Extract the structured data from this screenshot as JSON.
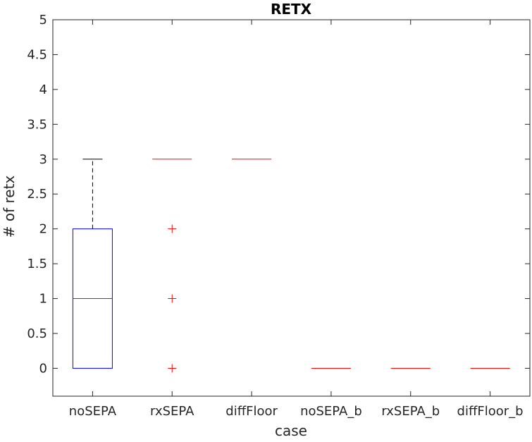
{
  "chart_data": {
    "type": "boxplot",
    "title": "RETX",
    "xlabel": "case",
    "ylabel": "# of retx",
    "ylim": [
      -0.4,
      5
    ],
    "yticks": [
      0,
      0.5,
      1,
      1.5,
      2,
      2.5,
      3,
      3.5,
      4,
      4.5,
      5
    ],
    "ytick_labels": [
      "0",
      "0.5",
      "1",
      "1.5",
      "2",
      "2.5",
      "3",
      "3.5",
      "4",
      "4.5",
      "5"
    ],
    "categories": [
      "noSEPA",
      "rxSEPA",
      "diffFloor",
      "noSEPA_b",
      "rxSEPA_b",
      "diffFloor_b"
    ],
    "boxes": [
      {
        "category": "noSEPA",
        "q1": 0,
        "median": 1,
        "q3": 2,
        "whisker_low": 0,
        "whisker_high": 3,
        "outliers": []
      },
      {
        "category": "rxSEPA",
        "q1": 3,
        "median": 3,
        "q3": 3,
        "whisker_low": 3,
        "whisker_high": 3,
        "outliers": [
          2,
          1,
          0
        ]
      },
      {
        "category": "diffFloor",
        "q1": 3,
        "median": 3,
        "q3": 3,
        "whisker_low": 3,
        "whisker_high": 3,
        "outliers": []
      },
      {
        "category": "noSEPA_b",
        "q1": 0,
        "median": 0,
        "q3": 0,
        "whisker_low": 0,
        "whisker_high": 0,
        "outliers": []
      },
      {
        "category": "rxSEPA_b",
        "q1": 0,
        "median": 0,
        "q3": 0,
        "whisker_low": 0,
        "whisker_high": 0,
        "outliers": []
      },
      {
        "category": "diffFloor_b",
        "q1": 0,
        "median": 0,
        "q3": 0,
        "whisker_low": 0,
        "whisker_high": 0,
        "outliers": []
      }
    ],
    "colors": {
      "box": "#0000ff",
      "median": "#ff0000",
      "whisker": "#000000",
      "outlier": "#ff0000",
      "axis": "#262626"
    },
    "grid": false,
    "legend": "none"
  }
}
